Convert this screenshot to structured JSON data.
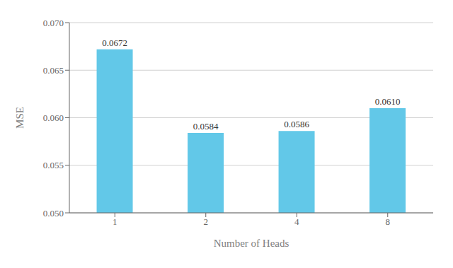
{
  "chart_data": {
    "type": "bar",
    "categories": [
      "1",
      "2",
      "4",
      "8"
    ],
    "values": [
      0.0672,
      0.0584,
      0.0586,
      0.061
    ],
    "value_labels": [
      "0.0672",
      "0.0584",
      "0.0586",
      "0.0610"
    ],
    "data_labels": true,
    "color": "#62C8E8",
    "xlabel": "Number of Heads",
    "ylabel": "MSE",
    "ylim": [
      0.05,
      0.07
    ],
    "yticks": [
      {
        "value": 0.05,
        "label": "0.050"
      },
      0.055,
      {
        "value": 0.06,
        "label": "0.060"
      },
      0.065,
      {
        "value": 0.07,
        "label": "0.070"
      }
    ],
    "grid": true
  }
}
